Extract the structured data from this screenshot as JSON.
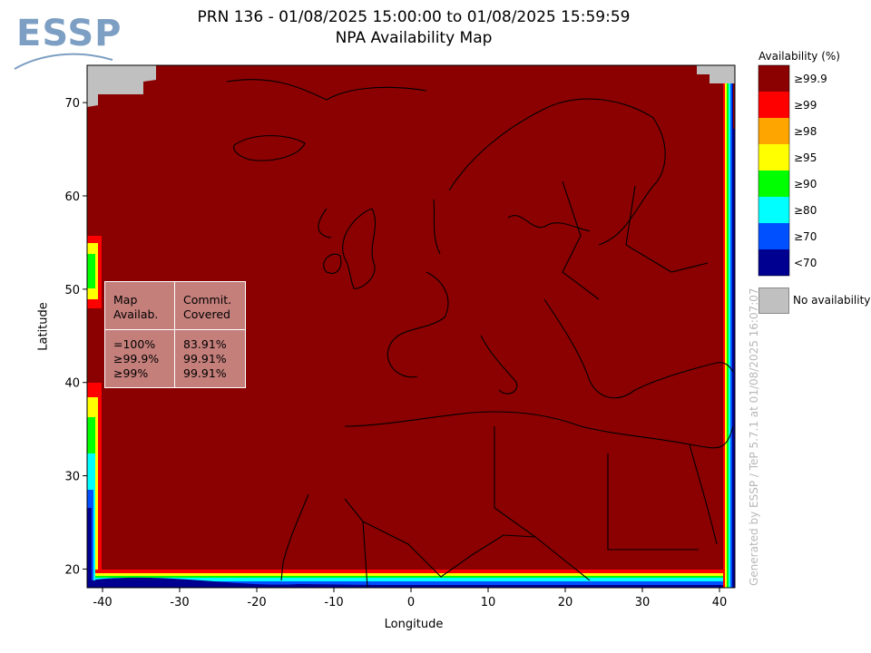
{
  "header": {
    "logo_text": "ESSP",
    "title_line1": "PRN 136 - 01/08/2025 15:00:00 to 01/08/2025 15:59:59",
    "title_line2": "NPA Availability Map"
  },
  "axes": {
    "ylabel": "Latitude",
    "xlabel": "Longitude",
    "x_ticks": [
      -40,
      -30,
      -20,
      -10,
      0,
      10,
      20,
      30,
      40
    ],
    "y_ticks": [
      20,
      30,
      40,
      50,
      60,
      70
    ],
    "x_range": [
      -42,
      42
    ],
    "y_range": [
      18,
      74
    ]
  },
  "legend": {
    "title": "Availability (%)",
    "items": [
      {
        "label": "≥99.9",
        "color": "#8b0000"
      },
      {
        "label": "≥99",
        "color": "#ff0000"
      },
      {
        "label": "≥98",
        "color": "#ffa500"
      },
      {
        "label": "≥95",
        "color": "#ffff00"
      },
      {
        "label": "≥90",
        "color": "#00ff00"
      },
      {
        "label": "≥80",
        "color": "#00ffff"
      },
      {
        "label": "≥70",
        "color": "#0050ff"
      },
      {
        "label": "<70",
        "color": "#000090"
      }
    ],
    "no_availability": {
      "label": "No availability",
      "color": "#c0c0c0"
    }
  },
  "stats_table": {
    "col1_header": [
      "Map",
      "Availab."
    ],
    "col2_header": [
      "Commit.",
      "Covered"
    ],
    "rows": [
      {
        "level": "=100%",
        "covered": "83.91%"
      },
      {
        "level": "≥99.9%",
        "covered": "99.91%"
      },
      {
        "level": "≥99%",
        "covered": "99.91%"
      }
    ]
  },
  "watermark": "Generated by ESSP / TeP 5.7.1 at 01/08/2025 16:07:07"
}
